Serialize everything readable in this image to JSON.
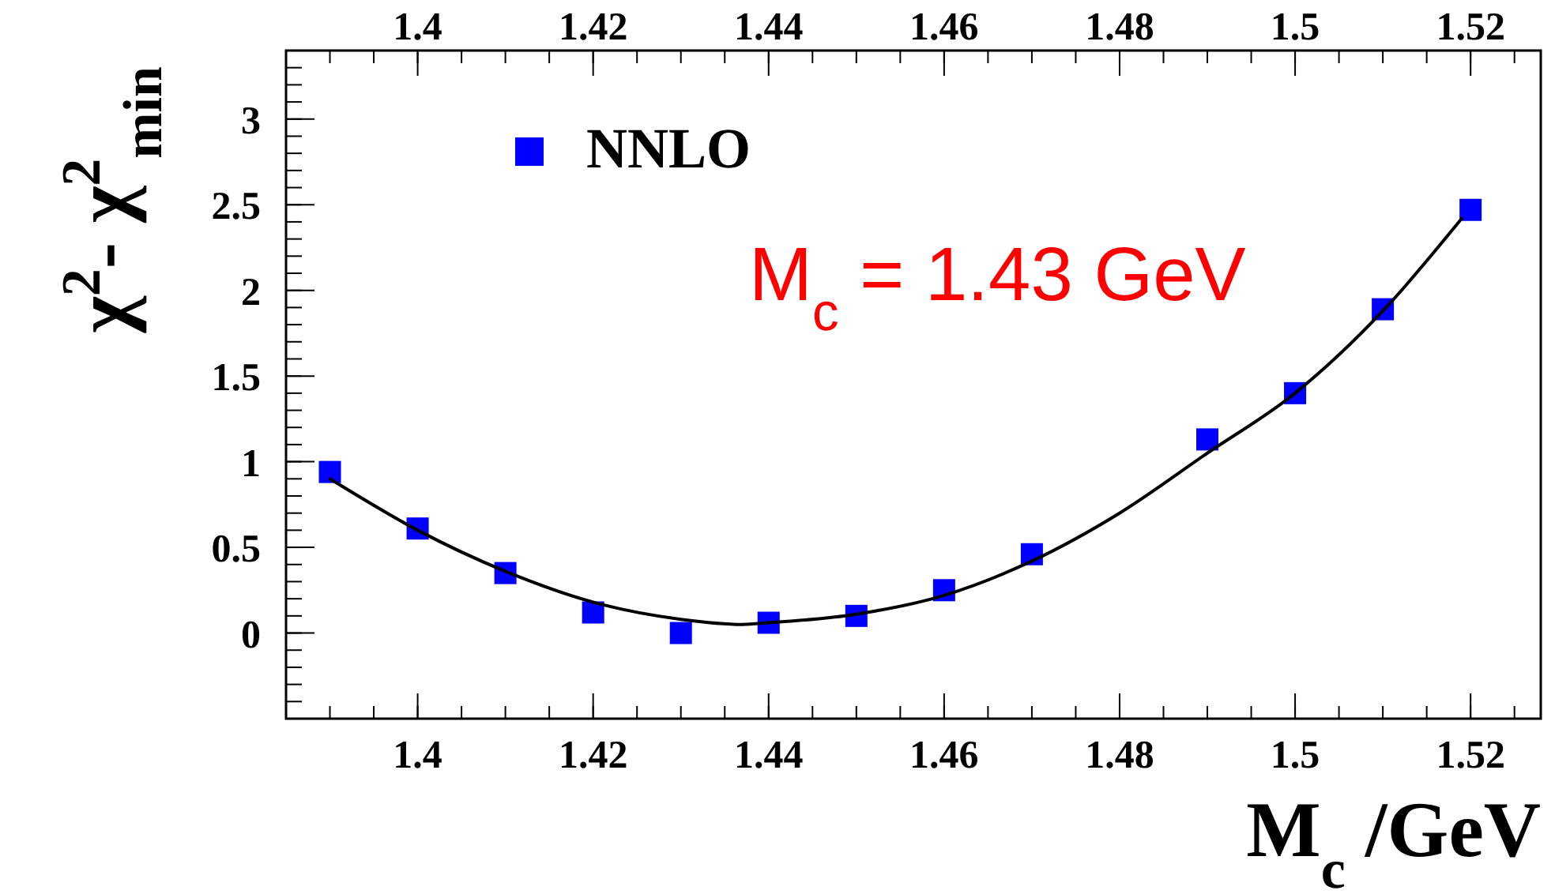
{
  "chart_data": {
    "type": "scatter",
    "xlabel": "M$_{c}$ /GeV",
    "ylabel": "χ$^{2}$- χ$^{2}$$_{min}$",
    "annotations": [
      "M$_{c}$ = 1.43 GeV"
    ],
    "xlim": [
      1.385,
      1.528
    ],
    "xticks": [
      1.4,
      1.42,
      1.44,
      1.46,
      1.48,
      1.5,
      1.52
    ],
    "x2lim": [
      1.385,
      1.528
    ],
    "x2ticks": [
      1.4,
      1.42,
      1.44,
      1.46,
      1.48,
      1.5,
      1.52
    ],
    "ylim": [
      -0.5,
      3.4
    ],
    "yticks": [
      0,
      0.5,
      1,
      1.5,
      2,
      2.5,
      3
    ],
    "legend": "top left",
    "grid": false,
    "series": [
      {
        "name": "NNLO",
        "marker": "square",
        "color": "#0000ff",
        "x": [
          1.39,
          1.4,
          1.41,
          1.42,
          1.43,
          1.44,
          1.45,
          1.46,
          1.47,
          1.49,
          1.5,
          1.51,
          1.52
        ],
        "values": [
          0.94,
          0.61,
          0.35,
          0.12,
          0,
          0.06,
          0.1,
          0.25,
          0.46,
          1.13,
          1.4,
          1.89,
          2.47
        ]
      },
      {
        "type": "line",
        "marker": "none",
        "line_style": "solid",
        "color": "#000000",
        "x": [
          1.39,
          1.4,
          1.41,
          1.42,
          1.43,
          1.437,
          1.44,
          1.45,
          1.46,
          1.47,
          1.48,
          1.49,
          1.5,
          1.51,
          1.519
        ],
        "values": [
          0.9,
          0.6,
          0.36,
          0.18,
          0.08,
          0.05,
          0.06,
          0.11,
          0.22,
          0.42,
          0.7,
          1.05,
          1.4,
          1.88,
          2.42
        ]
      }
    ]
  }
}
